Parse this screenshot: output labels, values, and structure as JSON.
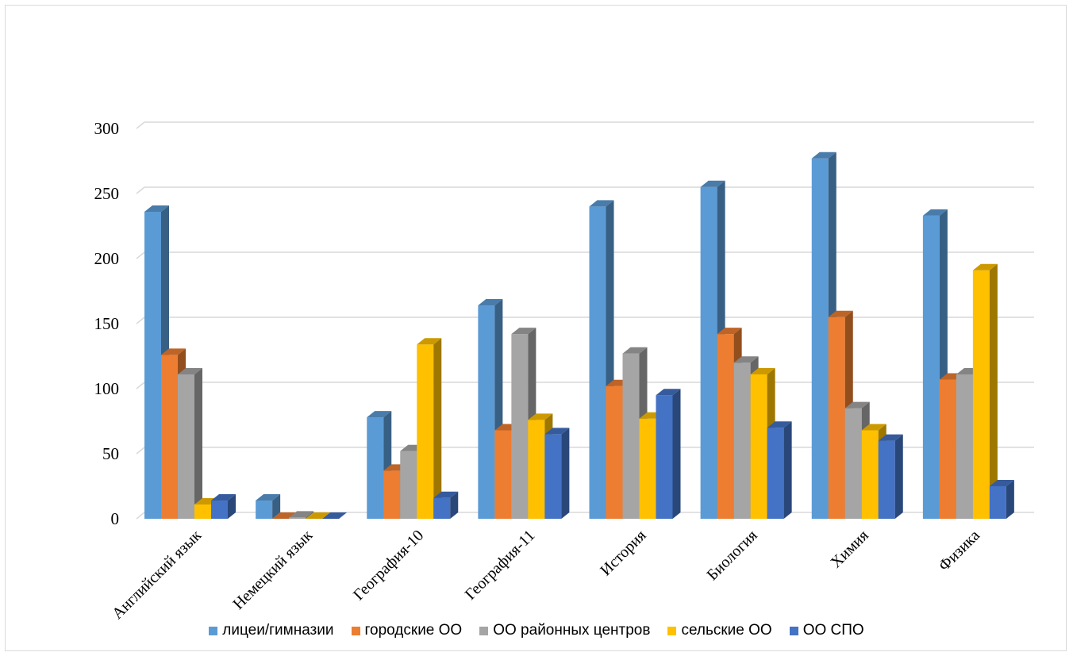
{
  "chart_data": {
    "type": "bar",
    "categories": [
      "Английский язык",
      "Немецкий язык",
      "География-10",
      "География-11",
      "История",
      "Биология",
      "Химия",
      "Физика"
    ],
    "series": [
      {
        "name": "лицеи/гимназии",
        "color": "#5b9bd5",
        "values": [
          236,
          14,
          78,
          164,
          240,
          255,
          277,
          233
        ]
      },
      {
        "name": "городские ОО",
        "color": "#ed7d31",
        "values": [
          126,
          0,
          37,
          68,
          102,
          142,
          155,
          107
        ]
      },
      {
        "name": "ОО районных центров",
        "color": "#a5a5a5",
        "values": [
          111,
          1,
          52,
          142,
          127,
          120,
          85,
          111
        ]
      },
      {
        "name": "сельские ОО",
        "color": "#ffc000",
        "values": [
          11,
          0,
          134,
          76,
          77,
          111,
          68,
          191
        ]
      },
      {
        "name": "ОО СПО",
        "color": "#4472c4",
        "values": [
          14,
          0,
          16,
          65,
          95,
          70,
          60,
          25
        ]
      }
    ],
    "ylim": [
      0,
      300
    ],
    "yticks": [
      "0",
      "50",
      "100",
      "150",
      "200",
      "250",
      "300"
    ],
    "grid": true,
    "legend_position": "bottom",
    "style": "3d-columns"
  }
}
